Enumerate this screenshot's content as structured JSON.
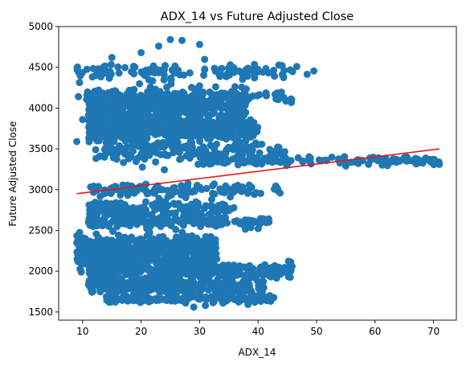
{
  "chart_data": {
    "type": "scatter",
    "title": "ADX_14 vs Future Adjusted Close",
    "xlabel": "ADX_14",
    "ylabel": "Future Adjusted Close",
    "xlim": [
      5.9,
      73.9
    ],
    "ylim": [
      1400,
      5000
    ],
    "xticks": [
      10,
      20,
      30,
      40,
      50,
      60,
      70
    ],
    "yticks": [
      1500,
      2000,
      2500,
      3000,
      3500,
      4000,
      4500,
      5000
    ],
    "grid": false,
    "legend": "none",
    "point_color": "#1f77b4",
    "line_color": "#e31a1c",
    "trend_line": {
      "x": [
        9,
        71
      ],
      "y": [
        2950,
        3500
      ]
    },
    "clusters": [
      {
        "x_range": [
          9,
          50
        ],
        "y": 4450,
        "y_spread": 90,
        "n": 120
      },
      {
        "x_range": [
          11,
          38
        ],
        "y": 4050,
        "y_spread": 160,
        "n": 420
      },
      {
        "x_range": [
          9,
          47
        ],
        "y": 4150,
        "y_spread": 70,
        "n": 90
      },
      {
        "x_range": [
          11,
          40
        ],
        "y": 3750,
        "y_spread": 170,
        "n": 520
      },
      {
        "x_range": [
          12,
          45
        ],
        "y": 3450,
        "y_spread": 120,
        "n": 160
      },
      {
        "x_range": [
          30,
          71
        ],
        "y": 3360,
        "y_spread": 50,
        "n": 140
      },
      {
        "x_range": [
          11,
          44
        ],
        "y": 3000,
        "y_spread": 60,
        "n": 120
      },
      {
        "x_range": [
          11,
          36
        ],
        "y": 2760,
        "y_spread": 110,
        "n": 180
      },
      {
        "x_range": [
          11,
          42
        ],
        "y": 2600,
        "y_spread": 60,
        "n": 160
      },
      {
        "x_range": [
          9,
          33
        ],
        "y": 2330,
        "y_spread": 110,
        "n": 300
      },
      {
        "x_range": [
          9,
          33
        ],
        "y": 2150,
        "y_spread": 110,
        "n": 300
      },
      {
        "x_range": [
          11,
          46
        ],
        "y": 2000,
        "y_spread": 80,
        "n": 320
      },
      {
        "x_range": [
          11,
          41
        ],
        "y": 1820,
        "y_spread": 90,
        "n": 330
      },
      {
        "x_range": [
          14,
          43
        ],
        "y": 1660,
        "y_spread": 40,
        "n": 160
      }
    ],
    "outliers": [
      {
        "x": 9,
        "y": 3590
      },
      {
        "x": 10,
        "y": 3860
      },
      {
        "x": 20,
        "y": 4680
      },
      {
        "x": 25,
        "y": 4840
      },
      {
        "x": 27,
        "y": 4830
      },
      {
        "x": 23,
        "y": 4760
      },
      {
        "x": 30,
        "y": 4780
      },
      {
        "x": 29,
        "y": 1560
      },
      {
        "x": 31,
        "y": 1580
      },
      {
        "x": 15,
        "y": 4620
      },
      {
        "x": 70,
        "y": 3370
      },
      {
        "x": 65,
        "y": 3390
      },
      {
        "x": 55,
        "y": 3290
      }
    ]
  }
}
